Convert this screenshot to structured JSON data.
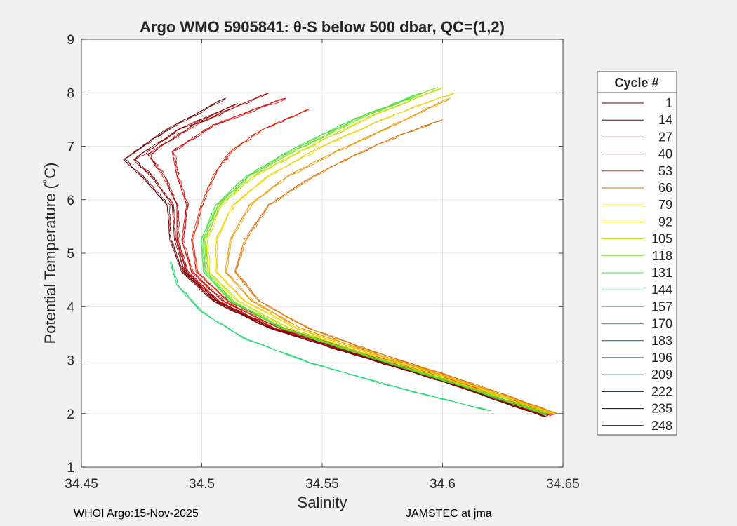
{
  "chart_data": {
    "type": "line",
    "title": "Argo WMO 5905841: θ-S below 500 dbar,  QC=(1,2)",
    "xlabel": "Salinity",
    "ylabel": "Potential Temperature (˚C)",
    "xlim": [
      34.45,
      34.65
    ],
    "ylim": [
      1,
      9
    ],
    "x_ticks": [
      34.45,
      34.5,
      34.55,
      34.6,
      34.65
    ],
    "x_tick_labels": [
      "34.45",
      "34.5",
      "34.55",
      "34.6",
      "34.65"
    ],
    "y_ticks": [
      1,
      2,
      3,
      4,
      5,
      6,
      7,
      8,
      9
    ],
    "y_tick_labels": [
      "1",
      "2",
      "3",
      "4",
      "5",
      "6",
      "7",
      "8",
      "9"
    ],
    "grid": true,
    "legend_title": "Cycle #",
    "legend_position": "right",
    "series": [
      {
        "name": "1",
        "color": "#6b0000",
        "x": [
          34.642,
          34.6,
          34.56,
          34.528,
          34.505,
          34.492,
          34.487,
          34.486,
          34.476,
          34.468,
          34.485,
          34.51
        ],
        "y": [
          1.95,
          2.6,
          3.15,
          3.6,
          4.1,
          4.65,
          5.25,
          5.9,
          6.4,
          6.75,
          7.3,
          7.9
        ]
      },
      {
        "name": "14",
        "color": "#8b0000",
        "x": [
          34.643,
          34.601,
          34.561,
          34.529,
          34.506,
          34.493,
          34.489,
          34.488,
          34.48,
          34.472,
          34.49,
          34.515
        ],
        "y": [
          1.95,
          2.6,
          3.15,
          3.6,
          4.1,
          4.65,
          5.25,
          5.9,
          6.4,
          6.75,
          7.3,
          7.8
        ]
      },
      {
        "name": "27",
        "color": "#b00000",
        "x": [
          34.644,
          34.602,
          34.562,
          34.53,
          34.507,
          34.494,
          34.49,
          34.49,
          34.484,
          34.478,
          34.497,
          34.528
        ],
        "y": [
          1.96,
          2.6,
          3.15,
          3.6,
          4.1,
          4.65,
          5.25,
          5.9,
          6.45,
          6.85,
          7.4,
          8.0
        ]
      },
      {
        "name": "40",
        "color": "#d40000",
        "x": [
          34.645,
          34.604,
          34.564,
          34.532,
          34.509,
          34.496,
          34.492,
          34.494,
          34.49,
          34.488,
          34.505,
          34.535
        ],
        "y": [
          1.97,
          2.6,
          3.15,
          3.6,
          4.1,
          4.65,
          5.25,
          5.9,
          6.45,
          6.9,
          7.4,
          7.9
        ]
      },
      {
        "name": "53",
        "color": "#e82000",
        "x": [
          34.646,
          34.606,
          34.566,
          34.534,
          34.511,
          34.498,
          34.496,
          34.5,
          34.505,
          34.512,
          34.525,
          34.545
        ],
        "y": [
          1.98,
          2.6,
          3.15,
          3.6,
          4.1,
          4.65,
          5.25,
          5.9,
          6.45,
          6.9,
          7.3,
          7.7
        ]
      },
      {
        "name": "66",
        "color": "#e07000",
        "x": [
          34.648,
          34.61,
          34.572,
          34.544,
          34.524,
          34.514,
          34.518,
          34.528,
          34.545,
          34.562,
          34.582,
          34.6
        ],
        "y": [
          2.0,
          2.6,
          3.15,
          3.6,
          4.1,
          4.65,
          5.25,
          5.9,
          6.4,
          6.8,
          7.2,
          7.5
        ]
      },
      {
        "name": "79",
        "color": "#e89a00",
        "x": [
          34.647,
          34.608,
          34.57,
          34.541,
          34.521,
          34.51,
          34.512,
          34.52,
          34.536,
          34.556,
          34.58,
          34.603
        ],
        "y": [
          2.0,
          2.6,
          3.15,
          3.6,
          4.1,
          4.65,
          5.25,
          5.9,
          6.45,
          6.9,
          7.4,
          7.9
        ]
      },
      {
        "name": "92",
        "color": "#f0d000",
        "x": [
          34.646,
          34.607,
          34.568,
          34.539,
          34.518,
          34.506,
          34.506,
          34.513,
          34.528,
          34.548,
          34.575,
          34.605
        ],
        "y": [
          2.0,
          2.6,
          3.15,
          3.6,
          4.1,
          4.65,
          5.25,
          5.9,
          6.45,
          6.95,
          7.5,
          8.0
        ]
      },
      {
        "name": "105",
        "color": "#c8e000",
        "x": [
          34.645,
          34.605,
          34.566,
          34.536,
          34.515,
          34.503,
          34.502,
          34.508,
          34.522,
          34.543,
          34.57,
          34.6
        ],
        "y": [
          2.0,
          2.6,
          3.15,
          3.6,
          4.1,
          4.65,
          5.25,
          5.9,
          6.45,
          6.95,
          7.55,
          8.1
        ]
      },
      {
        "name": "118",
        "color": "#80e020",
        "x": [
          34.644,
          34.603,
          34.564,
          34.534,
          34.513,
          34.502,
          34.501,
          34.507,
          34.52,
          34.54,
          34.567,
          34.598
        ],
        "y": [
          1.99,
          2.6,
          3.15,
          3.6,
          4.1,
          4.65,
          5.25,
          5.9,
          6.45,
          6.95,
          7.55,
          8.1
        ]
      },
      {
        "name": "131",
        "color": "#40e040",
        "x": [
          34.643,
          34.602,
          34.563,
          34.533,
          34.512,
          34.501,
          34.5,
          34.506,
          34.519,
          34.538,
          34.563,
          34.592
        ],
        "y": [
          1.98,
          2.6,
          3.15,
          3.6,
          4.1,
          4.65,
          5.25,
          5.9,
          6.45,
          6.95,
          7.5,
          8.0
        ]
      },
      {
        "name": "144",
        "color": "#20d870",
        "x": [
          34.62,
          34.58,
          34.545,
          34.518,
          34.5,
          34.49,
          34.487
        ],
        "y": [
          2.05,
          2.5,
          2.95,
          3.4,
          3.9,
          4.4,
          4.85
        ]
      },
      {
        "name": "157",
        "color": "#20d8b0",
        "x": [],
        "y": []
      },
      {
        "name": "170",
        "color": "#10a8a0",
        "x": [],
        "y": []
      },
      {
        "name": "183",
        "color": "#106070",
        "x": [],
        "y": []
      },
      {
        "name": "196",
        "color": "#183848",
        "x": [],
        "y": []
      },
      {
        "name": "209",
        "color": "#102838",
        "x": [],
        "y": []
      },
      {
        "name": "222",
        "color": "#081828",
        "x": [],
        "y": []
      },
      {
        "name": "235",
        "color": "#080818",
        "x": [],
        "y": []
      },
      {
        "name": "248",
        "color": "#00002a",
        "x": [],
        "y": []
      }
    ]
  },
  "footer": {
    "left": "WHOI Argo:15-Nov-2025",
    "right": "JAMSTEC at jma"
  },
  "colors": {
    "background": "#f0f0f0",
    "plot_background": "#ffffff",
    "grid": "#dfdfdf",
    "axis": "#262626"
  }
}
